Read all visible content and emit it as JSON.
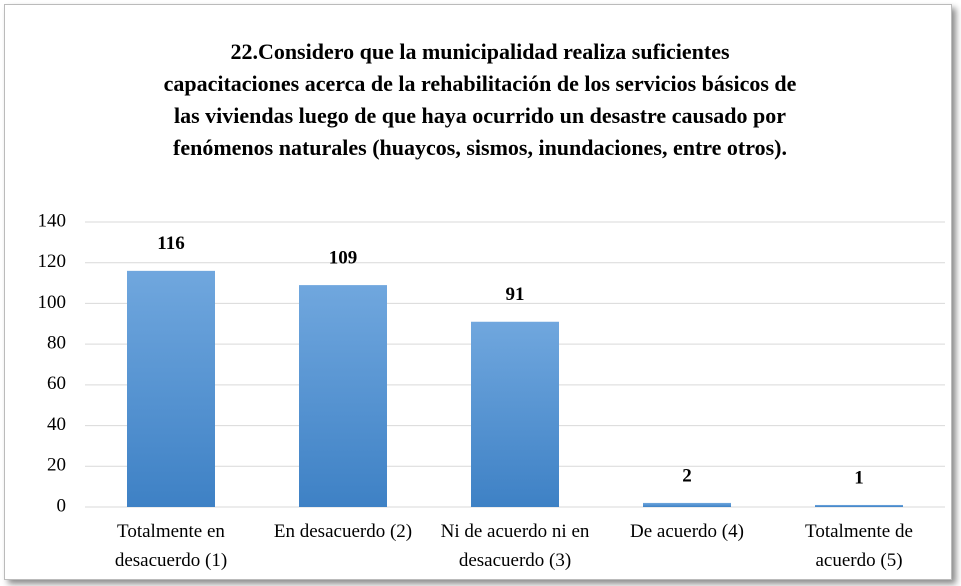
{
  "chart_data": {
    "type": "bar",
    "title": "22.Considero que la municipalidad realiza suficientes capacitaciones acerca de la rehabilitación de los servicios básicos de las viviendas luego de que haya ocurrido un desastre causado por fenómenos naturales (huaycos, sismos, inundaciones, entre otros).",
    "categories": [
      "Totalmente en desacuerdo (1)",
      "En desacuerdo (2)",
      "Ni de acuerdo ni en desacuerdo (3)",
      "De acuerdo (4)",
      "Totalmente de acuerdo (5)"
    ],
    "values": [
      116,
      109,
      91,
      2,
      1
    ],
    "color": "#5b9bd5",
    "ylim": [
      0,
      140
    ],
    "yticks": [
      0,
      20,
      40,
      60,
      80,
      100,
      120,
      140
    ],
    "grid": true
  }
}
